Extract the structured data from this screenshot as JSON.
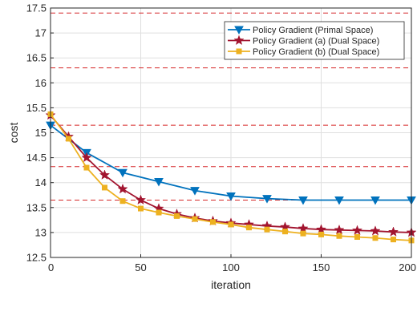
{
  "chart_data": {
    "type": "line",
    "xlabel": "iteration",
    "ylabel": "cost",
    "xlim": [
      0,
      200
    ],
    "ylim": [
      12.5,
      17.5
    ],
    "xticks": [
      "0",
      "50",
      "100",
      "150",
      "200"
    ],
    "yticks": [
      "12.5",
      "13",
      "13.5",
      "14",
      "14.5",
      "15",
      "15.5",
      "16",
      "16.5",
      "17",
      "17.5"
    ],
    "grid": true,
    "legend_position": "top-right",
    "series": [
      {
        "name": "Policy Gradient (Primal Space)",
        "color": "#0072BD",
        "marker": "triangle-down",
        "x": [
          0,
          20,
          40,
          60,
          80,
          100,
          120,
          140,
          160,
          180,
          200
        ],
        "values": [
          15.15,
          14.6,
          14.2,
          14.02,
          13.84,
          13.73,
          13.68,
          13.65,
          13.65,
          13.65,
          13.65
        ]
      },
      {
        "name": "Policy Gradient (a) (Dual Space)",
        "color": "#A2142F",
        "marker": "star",
        "x": [
          0,
          10,
          20,
          30,
          40,
          50,
          60,
          70,
          80,
          90,
          100,
          110,
          120,
          130,
          140,
          150,
          160,
          170,
          180,
          190,
          200
        ],
        "values": [
          15.35,
          14.92,
          14.5,
          14.15,
          13.87,
          13.65,
          13.48,
          13.37,
          13.29,
          13.23,
          13.19,
          13.16,
          13.13,
          13.11,
          13.08,
          13.06,
          13.05,
          13.04,
          13.03,
          13.01,
          13.0
        ]
      },
      {
        "name": "Policy Gradient (b) (Dual Space)",
        "color": "#EDB120",
        "marker": "square",
        "x": [
          0,
          10,
          20,
          30,
          40,
          50,
          60,
          70,
          80,
          90,
          100,
          110,
          120,
          130,
          140,
          150,
          160,
          170,
          180,
          190,
          200
        ],
        "values": [
          15.37,
          14.88,
          14.3,
          13.9,
          13.63,
          13.48,
          13.4,
          13.33,
          13.27,
          13.21,
          13.16,
          13.1,
          13.06,
          13.02,
          12.98,
          12.96,
          12.93,
          12.91,
          12.89,
          12.86,
          12.84
        ]
      }
    ],
    "reference_lines": {
      "color": "#D62728",
      "style": "dashed",
      "y": [
        17.4,
        16.3,
        15.15,
        14.32,
        13.65
      ]
    }
  }
}
